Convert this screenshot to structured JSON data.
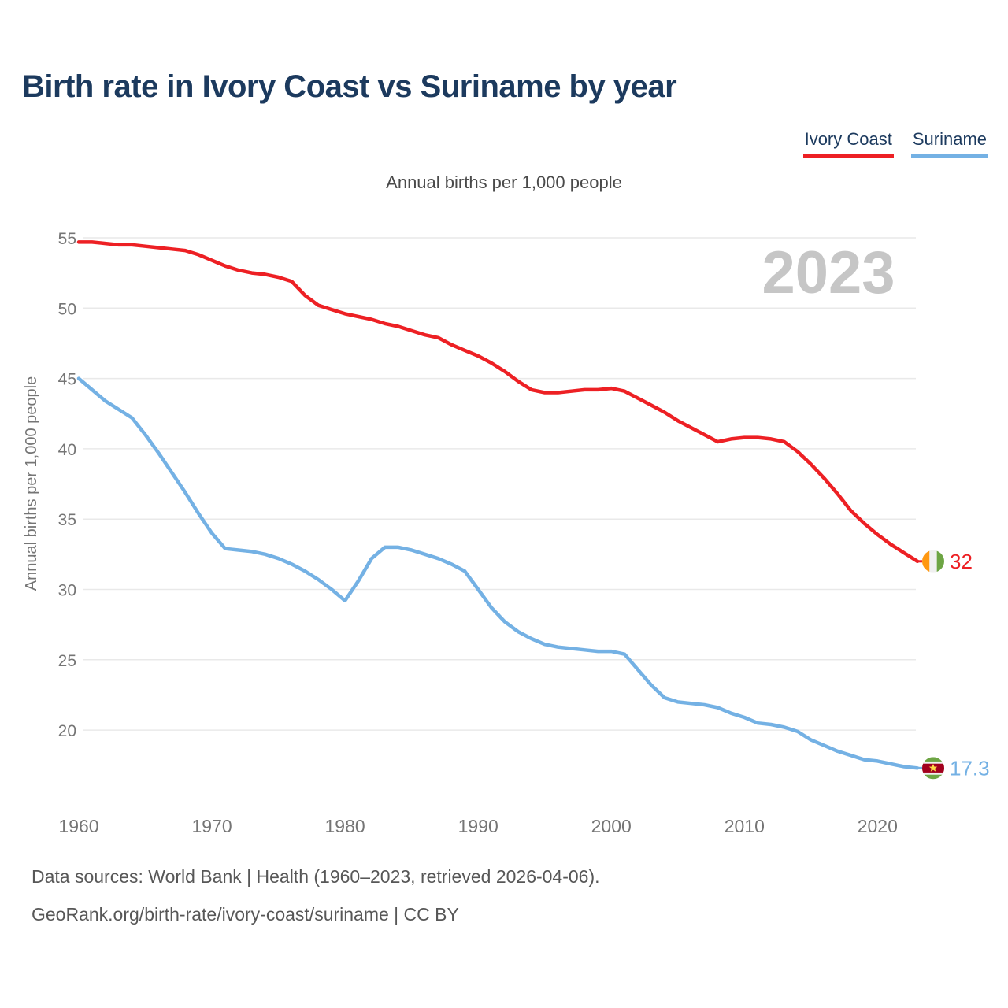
{
  "page": {
    "title": "Birth rate in Ivory Coast vs Suriname by year",
    "subtitle": "Annual births per 1,000 people",
    "watermark": "2023",
    "footer": {
      "line1": "Data sources: World Bank | Health (1960–2023, retrieved 2026-04-06).",
      "line2": "GeoRank.org/birth-rate/ivory-coast/suriname | CC BY"
    }
  },
  "legend": {
    "items": [
      {
        "label": "Ivory Coast",
        "color": "#ed2024"
      },
      {
        "label": "Suriname",
        "color": "#74b1e4"
      }
    ]
  },
  "theme": {
    "title_color": "#1c3a5e",
    "axis_color": "#757575",
    "grid_color": "#e9e9e9",
    "watermark_color": "#c6c6c6",
    "footer_color": "#575757",
    "subtitle_color": "#4a4a4a"
  },
  "chart_data": {
    "type": "line",
    "title": "Birth rate in Ivory Coast vs Suriname by year",
    "subtitle": "Annual births per 1,000 people",
    "ylabel": "Annual births per 1,000 people",
    "xlabel": "",
    "grid": "horizontal",
    "legend_position": "top-right",
    "watermark": "2023",
    "ylim": [
      16.5,
      56
    ],
    "y_ticks": [
      55,
      50,
      45,
      40,
      35,
      30,
      25,
      20
    ],
    "x_ticks": [
      1960,
      1970,
      1980,
      1990,
      2000,
      2010,
      2020
    ],
    "x": [
      1960,
      1961,
      1962,
      1963,
      1964,
      1965,
      1966,
      1967,
      1968,
      1969,
      1970,
      1971,
      1972,
      1973,
      1974,
      1975,
      1976,
      1977,
      1978,
      1979,
      1980,
      1981,
      1982,
      1983,
      1984,
      1985,
      1986,
      1987,
      1988,
      1989,
      1990,
      1991,
      1992,
      1993,
      1994,
      1995,
      1996,
      1997,
      1998,
      1999,
      2000,
      2001,
      2002,
      2003,
      2004,
      2005,
      2006,
      2007,
      2008,
      2009,
      2010,
      2011,
      2012,
      2013,
      2014,
      2015,
      2016,
      2017,
      2018,
      2019,
      2020,
      2021,
      2022,
      2023
    ],
    "series": [
      {
        "name": "Ivory Coast",
        "color": "#ed2024",
        "values": [
          54.7,
          54.7,
          54.6,
          54.5,
          54.5,
          54.4,
          54.3,
          54.2,
          54.1,
          53.8,
          53.4,
          53.0,
          52.7,
          52.5,
          52.4,
          52.2,
          51.9,
          50.9,
          50.2,
          49.9,
          49.6,
          49.4,
          49.2,
          48.9,
          48.7,
          48.4,
          48.1,
          47.9,
          47.4,
          47.0,
          46.6,
          46.1,
          45.5,
          44.8,
          44.2,
          44.0,
          44.0,
          44.1,
          44.2,
          44.2,
          44.3,
          44.1,
          43.6,
          43.1,
          42.6,
          42.0,
          41.5,
          41.0,
          40.5,
          40.7,
          40.8,
          40.8,
          40.7,
          40.5,
          39.8,
          38.9,
          37.9,
          36.8,
          35.6,
          34.7,
          33.9,
          33.2,
          32.6,
          32.0
        ]
      },
      {
        "name": "Suriname",
        "color": "#74b1e4",
        "values": [
          45.0,
          44.2,
          43.4,
          42.8,
          42.2,
          41.0,
          39.7,
          38.3,
          36.9,
          35.4,
          34.0,
          32.9,
          32.8,
          32.7,
          32.5,
          32.2,
          31.8,
          31.3,
          30.7,
          30.0,
          29.2,
          30.6,
          32.2,
          33.0,
          33.0,
          32.8,
          32.5,
          32.2,
          31.8,
          31.3,
          30.0,
          28.7,
          27.7,
          27.0,
          26.5,
          26.1,
          25.9,
          25.8,
          25.7,
          25.6,
          25.6,
          25.4,
          24.3,
          23.2,
          22.3,
          22.0,
          21.9,
          21.8,
          21.6,
          21.2,
          20.9,
          20.5,
          20.4,
          20.2,
          19.9,
          19.3,
          18.9,
          18.5,
          18.2,
          17.9,
          17.8,
          17.6,
          17.4,
          17.3
        ]
      }
    ],
    "end_labels": [
      {
        "series": "Ivory Coast",
        "value": "32",
        "flag": "ivory-coast",
        "flag_colors": {
          "orange": "#ff9811",
          "white": "#f0f0f0",
          "green": "#6da544"
        }
      },
      {
        "series": "Suriname",
        "value": "17.3",
        "flag": "suriname",
        "flag_colors": {
          "green": "#6da544",
          "white": "#f0f0f0",
          "red": "#a2001d",
          "star": "#ffda44"
        }
      }
    ]
  }
}
